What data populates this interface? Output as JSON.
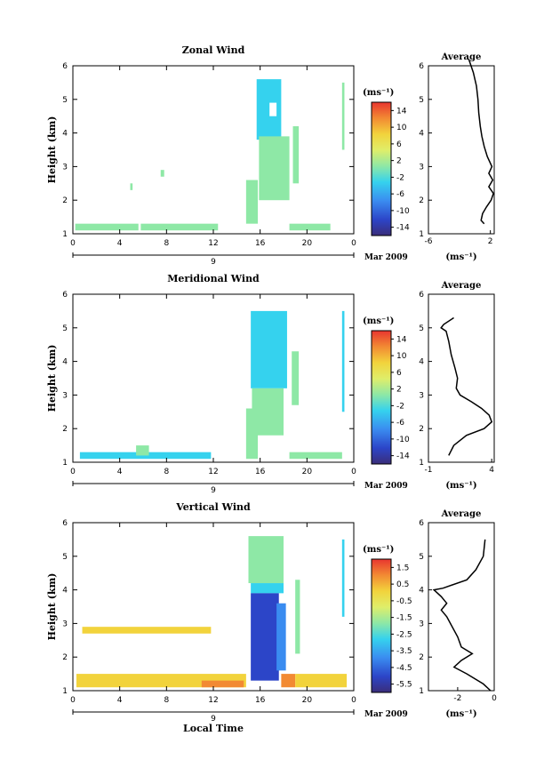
{
  "figure": {
    "date_label": "Mar 2009",
    "day_label": "9",
    "xlabel": "Local Time",
    "ylabel": "Height (km)",
    "unit": "(ms⁻¹)"
  },
  "chart_data": [
    {
      "type": "heatmap",
      "title": "Zonal Wind",
      "xlabel": "",
      "ylabel": "Height (km)",
      "x_ticks": [
        "0",
        "4",
        "8",
        "12",
        "16",
        "20",
        "0"
      ],
      "y_ticks": [
        "1",
        "2",
        "3",
        "4",
        "5",
        "6"
      ],
      "xlim": [
        0,
        24
      ],
      "ylim": [
        1,
        6
      ],
      "colorbar": {
        "title": "(ms⁻¹)",
        "ticks": [
          "14",
          "10",
          "6",
          "2",
          "-2",
          "-6",
          "-10",
          "-14"
        ],
        "range": [
          -16,
          16
        ]
      },
      "average_profile": {
        "title": "Average",
        "xlabel": "(ms⁻¹)",
        "x_ticks": [
          "-6",
          "2"
        ],
        "xlim": [
          -6,
          2.5
        ],
        "ylim": [
          1,
          6
        ],
        "points": [
          [
            -0.8,
            6.2
          ],
          [
            -0.2,
            5.8
          ],
          [
            0.2,
            5.4
          ],
          [
            0.4,
            5.0
          ],
          [
            0.5,
            4.6
          ],
          [
            0.7,
            4.2
          ],
          [
            0.9,
            3.9
          ],
          [
            1.2,
            3.6
          ],
          [
            1.6,
            3.3
          ],
          [
            2.2,
            3.0
          ],
          [
            1.8,
            2.8
          ],
          [
            2.3,
            2.6
          ],
          [
            1.8,
            2.4
          ],
          [
            2.4,
            2.2
          ],
          [
            2.1,
            2.0
          ],
          [
            1.5,
            1.8
          ],
          [
            1.0,
            1.6
          ],
          [
            0.8,
            1.4
          ],
          [
            1.2,
            1.3
          ]
        ]
      }
    },
    {
      "type": "heatmap",
      "title": "Meridional Wind",
      "xlabel": "",
      "ylabel": "Height (km)",
      "x_ticks": [
        "0",
        "4",
        "8",
        "12",
        "16",
        "20",
        "0"
      ],
      "y_ticks": [
        "1",
        "2",
        "3",
        "4",
        "5",
        "6"
      ],
      "xlim": [
        0,
        24
      ],
      "ylim": [
        1,
        6
      ],
      "colorbar": {
        "title": "(ms⁻¹)",
        "ticks": [
          "14",
          "10",
          "6",
          "2",
          "-2",
          "-6",
          "-10",
          "-14"
        ],
        "range": [
          -16,
          16
        ]
      },
      "average_profile": {
        "title": "Average",
        "xlabel": "(ms⁻¹)",
        "x_ticks": [
          "-1",
          "4"
        ],
        "xlim": [
          -1,
          4.2
        ],
        "ylim": [
          1,
          6
        ],
        "points": [
          [
            1.0,
            5.3
          ],
          [
            0.2,
            5.1
          ],
          [
            0.0,
            5.0
          ],
          [
            0.4,
            4.9
          ],
          [
            0.6,
            4.6
          ],
          [
            0.8,
            4.2
          ],
          [
            1.1,
            3.8
          ],
          [
            1.3,
            3.5
          ],
          [
            1.2,
            3.2
          ],
          [
            1.5,
            3.0
          ],
          [
            2.4,
            2.8
          ],
          [
            3.2,
            2.6
          ],
          [
            3.8,
            2.4
          ],
          [
            4.0,
            2.2
          ],
          [
            3.4,
            2.0
          ],
          [
            2.0,
            1.8
          ],
          [
            1.0,
            1.5
          ],
          [
            0.6,
            1.2
          ]
        ]
      }
    },
    {
      "type": "heatmap",
      "title": "Vertical Wind",
      "xlabel": "Local Time",
      "ylabel": "Height (km)",
      "x_ticks": [
        "0",
        "4",
        "8",
        "12",
        "16",
        "20",
        "0"
      ],
      "y_ticks": [
        "1",
        "2",
        "3",
        "4",
        "5",
        "6"
      ],
      "xlim": [
        0,
        24
      ],
      "ylim": [
        1,
        6
      ],
      "colorbar": {
        "title": "(ms⁻¹)",
        "ticks": [
          "1.5",
          "0.5",
          "-0.5",
          "-1.5",
          "-2.5",
          "-3.5",
          "-4.5",
          "-5.5"
        ],
        "range": [
          -6,
          2
        ]
      },
      "average_profile": {
        "title": "Average",
        "xlabel": "(ms⁻¹)",
        "x_ticks": [
          "-2",
          "0"
        ],
        "xlim": [
          -3.6,
          0
        ],
        "ylim": [
          1,
          6
        ],
        "points": [
          [
            -0.5,
            5.5
          ],
          [
            -0.6,
            5.0
          ],
          [
            -1.0,
            4.6
          ],
          [
            -1.5,
            4.3
          ],
          [
            -2.8,
            4.05
          ],
          [
            -3.3,
            4.0
          ],
          [
            -2.9,
            3.8
          ],
          [
            -2.6,
            3.6
          ],
          [
            -2.9,
            3.4
          ],
          [
            -2.6,
            3.2
          ],
          [
            -2.4,
            3.0
          ],
          [
            -2.0,
            2.6
          ],
          [
            -1.8,
            2.3
          ],
          [
            -1.2,
            2.1
          ],
          [
            -1.8,
            1.9
          ],
          [
            -2.2,
            1.7
          ],
          [
            -1.5,
            1.5
          ],
          [
            -0.6,
            1.2
          ],
          [
            -0.2,
            1.0
          ]
        ]
      }
    }
  ]
}
